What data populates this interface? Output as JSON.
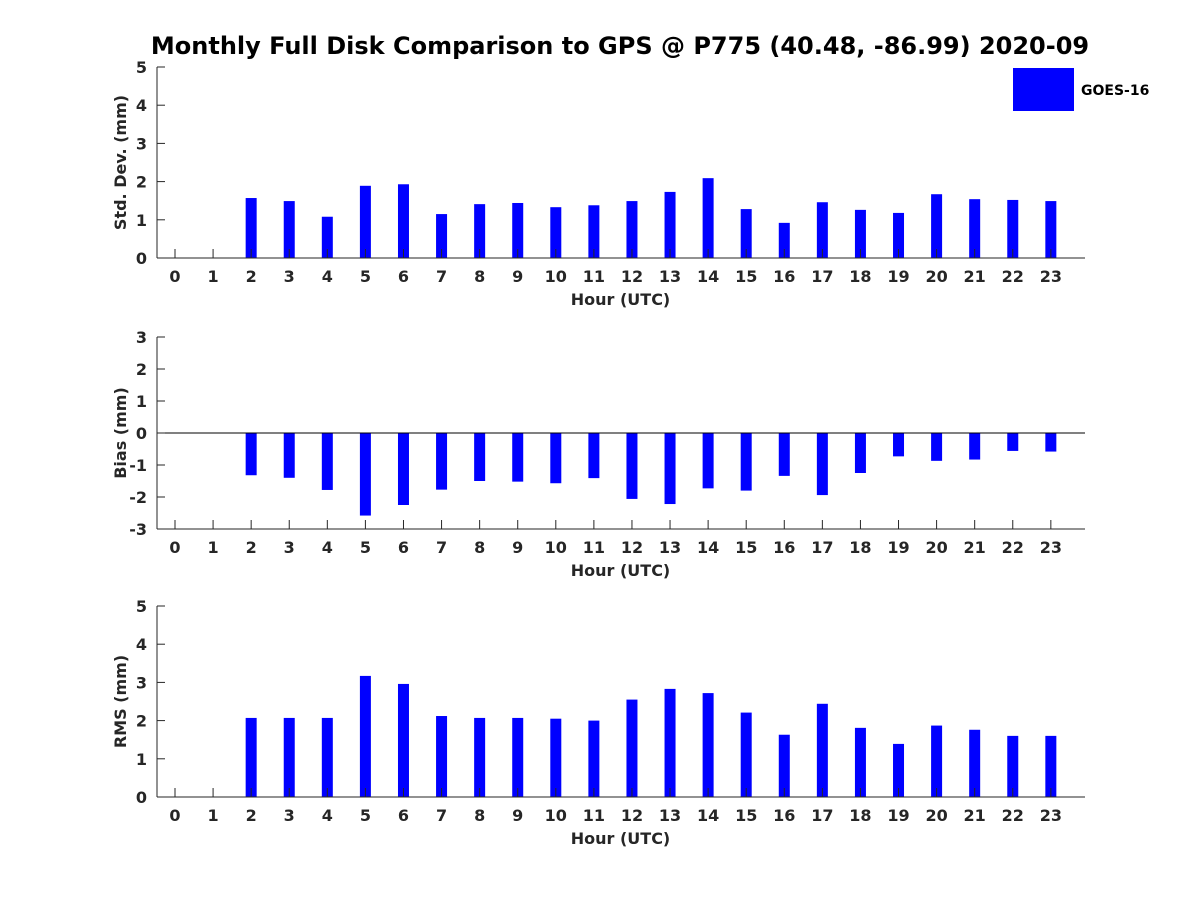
{
  "title": "Monthly Full Disk Comparison to GPS @ P775 (40.48, -86.99) 2020-09",
  "colors": {
    "bar": "#0000ff",
    "axis": "#262626"
  },
  "legend": {
    "label": "GOES-16",
    "placement": "top-right"
  },
  "chart_data": [
    {
      "type": "bar",
      "xlabel": "Hour (UTC)",
      "ylabel": "Std. Dev. (mm)",
      "ylim": [
        0,
        5
      ],
      "yticks": [
        0,
        1,
        2,
        3,
        4,
        5
      ],
      "categories": [
        "0",
        "1",
        "2",
        "3",
        "4",
        "5",
        "6",
        "7",
        "8",
        "9",
        "10",
        "11",
        "12",
        "13",
        "14",
        "15",
        "16",
        "17",
        "18",
        "19",
        "20",
        "21",
        "22",
        "23"
      ],
      "series": [
        {
          "name": "GOES-16",
          "values": [
            null,
            null,
            1.57,
            1.49,
            1.08,
            1.89,
            1.93,
            1.15,
            1.41,
            1.44,
            1.33,
            1.38,
            1.49,
            1.73,
            2.09,
            1.28,
            0.92,
            1.46,
            1.26,
            1.18,
            1.67,
            1.54,
            1.52,
            1.49
          ]
        }
      ],
      "grid": false
    },
    {
      "type": "bar",
      "xlabel": "Hour (UTC)",
      "ylabel": "Bias (mm)",
      "ylim": [
        -3,
        3
      ],
      "yticks": [
        -3,
        -2,
        -1,
        0,
        1,
        2,
        3
      ],
      "categories": [
        "0",
        "1",
        "2",
        "3",
        "4",
        "5",
        "6",
        "7",
        "8",
        "9",
        "10",
        "11",
        "12",
        "13",
        "14",
        "15",
        "16",
        "17",
        "18",
        "19",
        "20",
        "21",
        "22",
        "23"
      ],
      "series": [
        {
          "name": "GOES-16",
          "values": [
            null,
            null,
            -1.32,
            -1.4,
            -1.78,
            -2.58,
            -2.25,
            -1.77,
            -1.5,
            -1.52,
            -1.57,
            -1.41,
            -2.06,
            -2.22,
            -1.73,
            -1.8,
            -1.34,
            -1.94,
            -1.25,
            -0.73,
            -0.87,
            -0.83,
            -0.56,
            -0.58
          ]
        }
      ],
      "grid": false
    },
    {
      "type": "bar",
      "xlabel": "Hour (UTC)",
      "ylabel": "RMS (mm)",
      "ylim": [
        0,
        5
      ],
      "yticks": [
        0,
        1,
        2,
        3,
        4,
        5
      ],
      "categories": [
        "0",
        "1",
        "2",
        "3",
        "4",
        "5",
        "6",
        "7",
        "8",
        "9",
        "10",
        "11",
        "12",
        "13",
        "14",
        "15",
        "16",
        "17",
        "18",
        "19",
        "20",
        "21",
        "22",
        "23"
      ],
      "series": [
        {
          "name": "GOES-16",
          "values": [
            null,
            null,
            2.07,
            2.07,
            2.07,
            3.17,
            2.96,
            2.12,
            2.07,
            2.07,
            2.05,
            2.0,
            2.55,
            2.83,
            2.72,
            2.21,
            1.63,
            2.44,
            1.81,
            1.39,
            1.87,
            1.76,
            1.6,
            1.6
          ]
        }
      ],
      "grid": false
    }
  ]
}
